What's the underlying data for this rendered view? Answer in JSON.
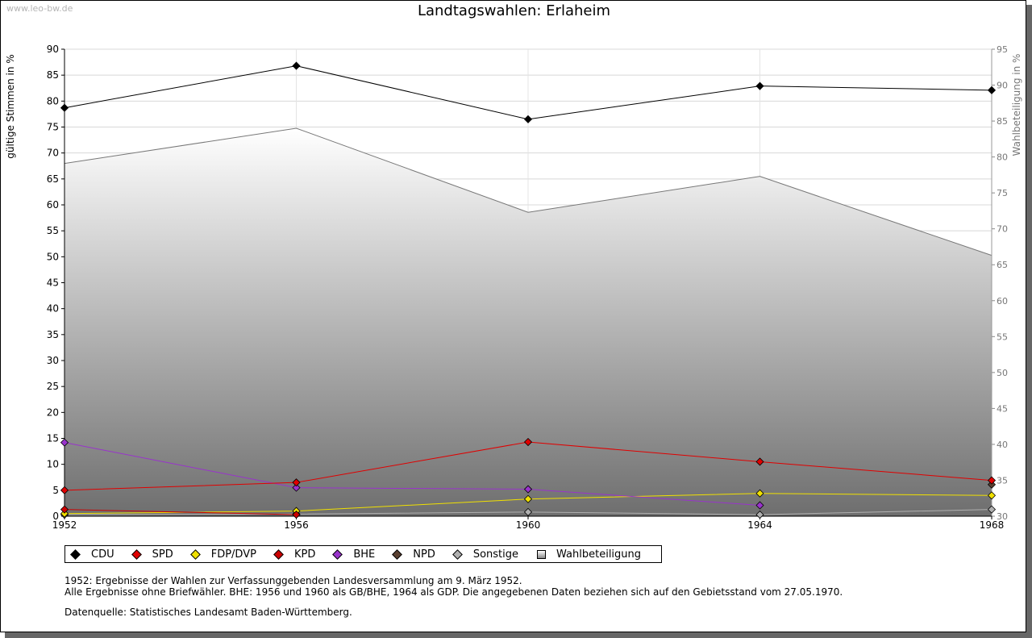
{
  "watermark": "www.leo-bw.de",
  "notes": [
    "1952: Ergebnisse der Wahlen zur Verfassunggebenden Landesversammlung am 9. März 1952.",
    "Alle Ergebnisse ohne Briefwähler. BHE: 1956 und 1960 als GB/BHE, 1964 als GDP. Die angegebenen Daten beziehen sich auf den Gebietsstand vom 27.05.1970."
  ],
  "source": "Datenquelle: Statistisches Landesamt Baden-Württemberg.",
  "chart_data": {
    "type": "line",
    "title": "Landtagswahlen: Erlaheim",
    "xlabel": "",
    "ylabel": "gültige Stimmen in %",
    "y2label": "Wahlbeteiligung in %",
    "x": [
      "1952",
      "1956",
      "1960",
      "1964",
      "1968"
    ],
    "ylim": [
      0,
      90
    ],
    "y2lim": [
      30,
      95
    ],
    "yticks": [
      "0",
      "5",
      "10",
      "15",
      "20",
      "25",
      "30",
      "35",
      "40",
      "45",
      "50",
      "55",
      "60",
      "65",
      "70",
      "75",
      "80",
      "85",
      "90"
    ],
    "y2ticks": [
      "30",
      "35",
      "40",
      "45",
      "50",
      "55",
      "60",
      "65",
      "70",
      "75",
      "80",
      "85",
      "90",
      "95"
    ],
    "grid": true,
    "legend_position": "bottom",
    "series": [
      {
        "name": "CDU",
        "color": "#000000",
        "values": [
          78.7,
          86.8,
          76.5,
          82.9,
          82.1
        ]
      },
      {
        "name": "SPD",
        "color": "#e00000",
        "values": [
          5.0,
          6.5,
          14.3,
          10.5,
          6.9
        ]
      },
      {
        "name": "FDP/DVP",
        "color": "#f0e000",
        "values": [
          0.5,
          1.0,
          3.3,
          4.4,
          4.0
        ]
      },
      {
        "name": "KPD",
        "color": "#cc0000",
        "values": [
          1.3,
          0.3,
          null,
          null,
          null
        ]
      },
      {
        "name": "BHE",
        "color": "#9933cc",
        "values": [
          14.2,
          5.5,
          5.2,
          2.1,
          null
        ]
      },
      {
        "name": "NPD",
        "color": "#5a4030",
        "values": [
          null,
          null,
          null,
          null,
          6.1
        ]
      },
      {
        "name": "Sonstige",
        "color": "#b0b0b0",
        "values": [
          0.3,
          0.4,
          0.8,
          0.3,
          1.3
        ]
      },
      {
        "name": "Wahlbeteiligung",
        "axis": "right",
        "type": "area",
        "color": "#808080",
        "values": [
          79.1,
          84.0,
          72.3,
          77.3,
          66.3
        ]
      }
    ]
  }
}
